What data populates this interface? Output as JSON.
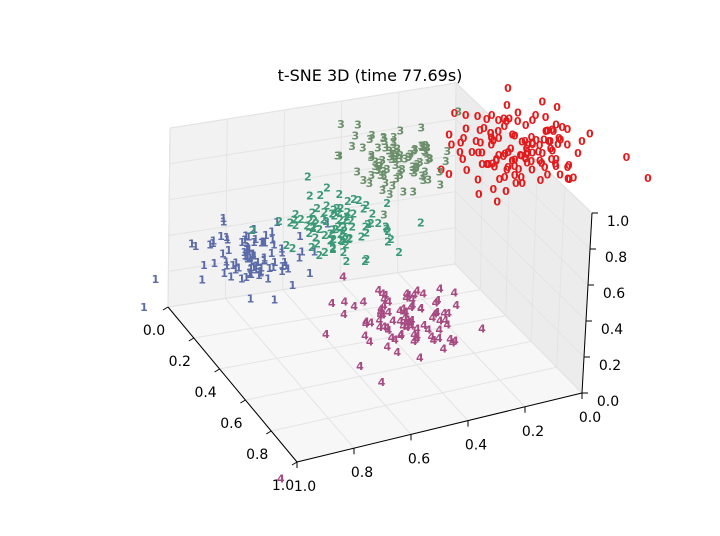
{
  "chart_data": {
    "type": "scatter",
    "title": "t-SNE 3D (time 77.69s)",
    "xlabel": "",
    "ylabel": "",
    "zlabel": "",
    "grid": true,
    "axes": {
      "front_left": {
        "ticks": [
          "0.0",
          "0.2",
          "0.4",
          "0.6",
          "0.8",
          "1.0"
        ],
        "range": [
          0,
          1
        ]
      },
      "front_right": {
        "ticks": [
          "1.0",
          "0.8",
          "0.6",
          "0.4",
          "0.2",
          "0.0"
        ],
        "range": [
          1,
          0
        ]
      },
      "vertical": {
        "ticks": [
          "0.0",
          "0.2",
          "0.4",
          "0.6",
          "0.8",
          "1.0"
        ],
        "range": [
          0,
          1
        ]
      }
    },
    "series": [
      {
        "marker": "0",
        "color": "#e31a1c",
        "center": [
          0.72,
          0.28
        ],
        "spread": [
          0.085,
          0.075
        ],
        "count": 130
      },
      {
        "marker": "1",
        "color": "#5b6ba8",
        "center": [
          0.35,
          0.49
        ],
        "spread": [
          0.07,
          0.06
        ],
        "count": 90
      },
      {
        "marker": "2",
        "color": "#3a9a78",
        "center": [
          0.47,
          0.43
        ],
        "spread": [
          0.075,
          0.05
        ],
        "count": 90
      },
      {
        "marker": "3",
        "color": "#6b8f6b",
        "center": [
          0.55,
          0.3
        ],
        "spread": [
          0.07,
          0.06
        ],
        "count": 90
      },
      {
        "marker": "4",
        "color": "#a84a82",
        "center": [
          0.57,
          0.6
        ],
        "spread": [
          0.075,
          0.055
        ],
        "count": 90
      }
    ],
    "outliers": [
      {
        "marker": "1",
        "color": "#5b6ba8",
        "x": 0.2,
        "y": 0.58
      },
      {
        "marker": "4",
        "color": "#a84a82",
        "x": 0.39,
        "y": 0.9
      },
      {
        "marker": "4",
        "color": "#a84a82",
        "x": 0.5,
        "y": 0.69
      },
      {
        "marker": "4",
        "color": "#a84a82",
        "x": 0.53,
        "y": 0.72
      },
      {
        "marker": "0",
        "color": "#e31a1c",
        "x": 0.9,
        "y": 0.34
      },
      {
        "marker": "0",
        "color": "#e31a1c",
        "x": 0.87,
        "y": 0.3
      }
    ]
  }
}
